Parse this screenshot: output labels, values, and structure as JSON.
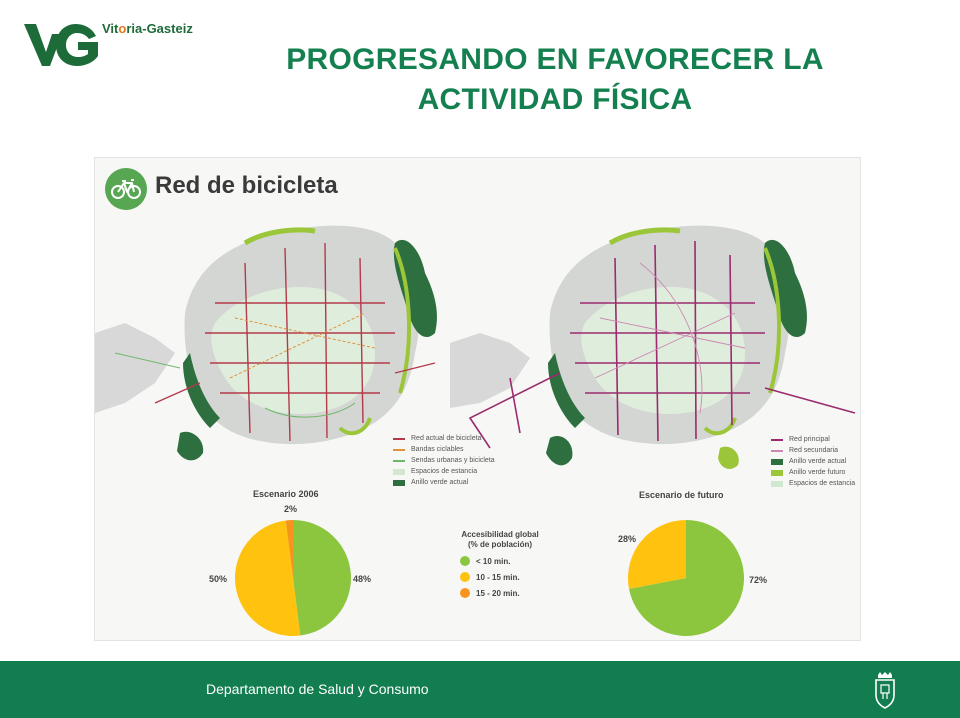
{
  "header": {
    "logo_text_1": "Vit",
    "logo_text_2": "o",
    "logo_text_3": "ria-Gasteiz",
    "title_line1": "PROGRESANDO EN FAVORECER LA",
    "title_line2": "ACTIVIDAD FÍSICA"
  },
  "panel": {
    "heading": "Red de bicicleta",
    "legend_current": [
      {
        "label": "Red actual de bicicleta",
        "color": "#b33a4a",
        "kind": "line"
      },
      {
        "label": "Bandas ciclables",
        "color": "#e0913a",
        "kind": "line"
      },
      {
        "label": "Sendas urbanas y bicicleta",
        "color": "#6fb86a",
        "kind": "line"
      },
      {
        "label": "Espacios de estancia",
        "color": "#cfe8cf",
        "kind": "box"
      },
      {
        "label": "Anillo verde actual",
        "color": "#2e6f40",
        "kind": "box"
      }
    ],
    "legend_future": [
      {
        "label": "Red principal",
        "color": "#9b2a6e",
        "kind": "line"
      },
      {
        "label": "Red secundaria",
        "color": "#cc88b3",
        "kind": "line"
      },
      {
        "label": "Anillo verde actual",
        "color": "#2e6f40",
        "kind": "box"
      },
      {
        "label": "Anillo verde futuro",
        "color": "#9cc63a",
        "kind": "box"
      },
      {
        "label": "Espacios de estancia",
        "color": "#cfe8cf",
        "kind": "box"
      }
    ],
    "scenario_2006": {
      "title": "Escenario 2006",
      "label_top": "2%",
      "label_left": "50%",
      "label_right": "48%"
    },
    "scenario_future": {
      "title": "Escenario de futuro",
      "label_left": "28%",
      "label_right": "72%"
    },
    "accessibility": {
      "title_line1": "Accesibilidad global",
      "title_line2": "(% de población)",
      "items": [
        {
          "label": "< 10 min.",
          "color": "#8cc63f"
        },
        {
          "label": "10 - 15 min.",
          "color": "#ffc20e"
        },
        {
          "label": "15 - 20 min.",
          "color": "#f7941d"
        }
      ]
    }
  },
  "pies": {
    "scenario_2006": [
      {
        "label": "< 10 min.",
        "value": 48,
        "color": "#8cc63f"
      },
      {
        "label": "10 - 15 min.",
        "value": 50,
        "color": "#ffc20e"
      },
      {
        "label": "15 - 20 min.",
        "value": 2,
        "color": "#f7941d"
      }
    ],
    "scenario_future": [
      {
        "label": "< 10 min.",
        "value": 72,
        "color": "#8cc63f"
      },
      {
        "label": "10 - 15 min.",
        "value": 28,
        "color": "#ffc20e"
      }
    ]
  },
  "footer": {
    "department": "Departamento de Salud y Consumo"
  },
  "colors": {
    "brand_green": "#127d4e",
    "title_green": "#14804f"
  }
}
